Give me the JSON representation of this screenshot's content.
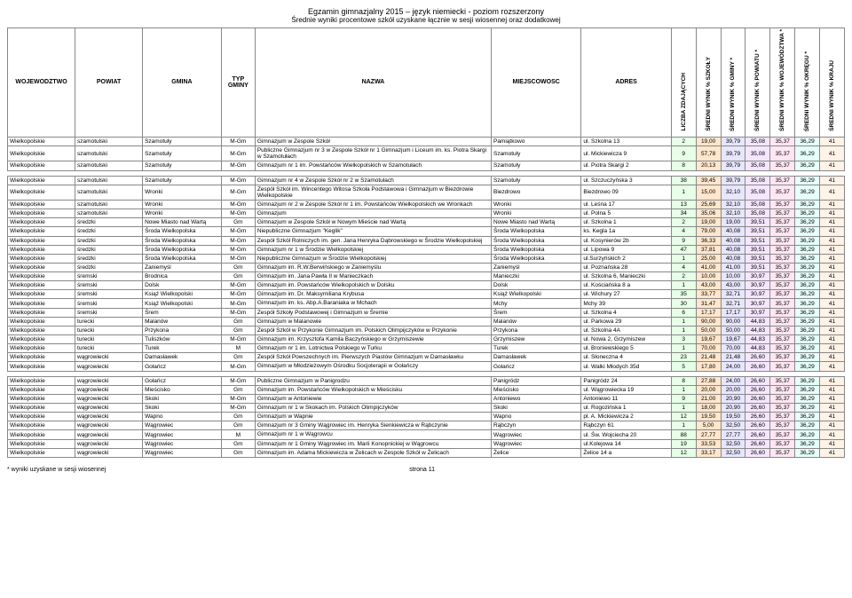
{
  "title": {
    "main": "Egzamin gimnazjalny 2015 – język niemiecki - poziom rozszerzony",
    "sub": "Średnie wyniki procentowe szkół  uzyskane łącznie w sesji wiosennej oraz dodatkowej"
  },
  "headers": {
    "wojewodztwo": "WOJEWODZTWO",
    "powiat": "POWIAT",
    "gmina": "GMINA",
    "typ_gminy": "TYP GMINY",
    "nazwa": "NAZWA",
    "miejscowosc": "MIEJSCOWOSC",
    "adres": "ADRES",
    "liczba": "LICZBA ZDAJĄCYCH",
    "szkoly": "ŚREDNI WYNIK % SZKOŁY",
    "gminy": "ŚREDNI WYNIK % GMINY *",
    "powiatu": "ŚREDNI WYNIK % POWIATU *",
    "wojew": "ŚREDNI WYNIK % WOJEWÓDZTWA *",
    "okregu": "ŚREDNI WYNIK % OKRĘGU *",
    "kraju": "ŚREDNI WYNIK % KRAJU"
  },
  "colors": {
    "liczba": "#e6ffe6",
    "szkoly": "#ffe6cc",
    "gminy": "#e6e6ff",
    "powiatu": "#f5e6ff",
    "wojew": "#ffe6f2",
    "okregu": "#e6fff9",
    "kraju": "#fff2e6"
  },
  "rows": [
    {
      "woj": "Wielkopolskie",
      "pow": "szamotulski",
      "gmi": "Szamotuły",
      "typ": "M-Gm",
      "nazwa": "Gimnazjum w Zespole Szkół",
      "miej": "Pamiątkowo",
      "adr": "ul. Szkolna 13",
      "v": [
        2,
        "19,00",
        "39,79",
        "35,08",
        "35,37",
        "36,29",
        "41"
      ]
    },
    {
      "woj": "Wielkopolskie",
      "pow": "szamotulski",
      "gmi": "Szamotuły",
      "typ": "M-Gm",
      "nazwa": "Publiczne Gimnazjum nr 3 w Zespole Szkół nr 1 Gimnazjum i Liceum im. ks. Piotra Skargi w Szamotułach",
      "miej": "Szamotuły",
      "adr": "ul. Mickiewicza 9",
      "v": [
        9,
        "57,78",
        "39,79",
        "35,08",
        "35,37",
        "36,29",
        "41"
      ]
    },
    {
      "woj": "Wielkopolskie",
      "pow": "szamotulski",
      "gmi": "Szamotuły",
      "typ": "M-Gm",
      "nazwa": "Gimnazjum nr 1 im. Powstańców Wielkopolskich w Szamotułach",
      "miej": "Szamotuły",
      "adr": "ul. Piotra Skargi 2",
      "v": [
        8,
        "20,13",
        "39,79",
        "35,08",
        "35,37",
        "36,29",
        "41"
      ]
    },
    {
      "_spacer": true
    },
    {
      "woj": "Wielkopolskie",
      "pow": "szamotulski",
      "gmi": "Szamotuły",
      "typ": "M-Gm",
      "nazwa": "Gimnazjum nr 4 w Zespole Szkół nr 2 w Szamotułach",
      "miej": "Szamotuły",
      "adr": "ul. Szczuczyńska 3",
      "v": [
        38,
        "39,45",
        "39,79",
        "35,08",
        "35,37",
        "36,29",
        "41"
      ]
    },
    {
      "woj": "Wielkopolskie",
      "pow": "szamotulski",
      "gmi": "Wronki",
      "typ": "M-Gm",
      "nazwa": "Zespół Szkół im. Wincentego Witosa Szkoła Podstawowa i Gimnazjum w Biezdrowie Wielkopolskie",
      "miej": "Biezdrowo",
      "adr": "Biezdrowo 09",
      "v": [
        1,
        "15,00",
        "32,10",
        "35,08",
        "35,37",
        "36,29",
        "41"
      ]
    },
    {
      "woj": "Wielkopolskie",
      "pow": "szamotulski",
      "gmi": "Wronki",
      "typ": "M-Gm",
      "nazwa": "Gimnazjum nr 2 w Zespole Szkół nr 1 im. Powstańców Wielkopolskich we Wronkach",
      "miej": "Wronki",
      "adr": "ul. Leśna 17",
      "v": [
        13,
        "25,69",
        "32,10",
        "35,08",
        "35,37",
        "36,29",
        "41"
      ]
    },
    {
      "woj": "Wielkopolskie",
      "pow": "szamotulski",
      "gmi": "Wronki",
      "typ": "M-Gm",
      "nazwa": "Gimnazjum",
      "miej": "Wronki",
      "adr": "ul. Polna 5",
      "v": [
        34,
        "35,06",
        "32,10",
        "35,08",
        "35,37",
        "36,29",
        "41"
      ]
    },
    {
      "woj": "Wielkopolskie",
      "pow": "średzki",
      "gmi": "Nowe Miasto nad Wartą",
      "typ": "Gm",
      "nazwa": "Gimnazjum w Zespole Szkół w Nowym Mieście nad Wartą",
      "miej": "Nowe Miasto nad Wartą",
      "adr": "ul. Szkolna 1",
      "v": [
        2,
        "19,00",
        "19,00",
        "39,51",
        "35,37",
        "36,29",
        "41"
      ]
    },
    {
      "woj": "Wielkopolskie",
      "pow": "średzki",
      "gmi": "Środa Wielkopolska",
      "typ": "M-Gm",
      "nazwa": "Niepubliczne Gimnazjum \"Keglik\"",
      "miej": "Środa Wielkopolska",
      "adr": "ks. Kegla 1a",
      "v": [
        4,
        "79,00",
        "40,08",
        "39,51",
        "35,37",
        "36,29",
        "41"
      ]
    },
    {
      "woj": "Wielkopolskie",
      "pow": "średzki",
      "gmi": "Środa Wielkopolska",
      "typ": "M-Gm",
      "nazwa": "Zespół Szkół Rolniczych im. gen. Jana Henryka Dąbrowskiego w Środzie Wielkopolskiej",
      "miej": "Środa Wielkopolska",
      "adr": "ul. Kosynierów 2b",
      "v": [
        9,
        "36,33",
        "40,08",
        "39,51",
        "35,37",
        "36,29",
        "41"
      ]
    },
    {
      "woj": "Wielkopolskie",
      "pow": "średzki",
      "gmi": "Środa Wielkopolska",
      "typ": "M-Gm",
      "nazwa": "Gimnazjum nr 1 w Środzie Wielkopolskiej",
      "miej": "Środa Wielkopolska",
      "adr": "ul. Lipowa 9",
      "v": [
        47,
        "37,81",
        "40,08",
        "39,51",
        "35,37",
        "36,29",
        "41"
      ]
    },
    {
      "woj": "Wielkopolskie",
      "pow": "średzki",
      "gmi": "Środa Wielkopolska",
      "typ": "M-Gm",
      "nazwa": "Niepubliczne Gimnazjum w Środzie Wielkopolskiej",
      "miej": "Środa Wielkopolska",
      "adr": "ul.Surzyńskich 2",
      "v": [
        1,
        "25,00",
        "40,08",
        "39,51",
        "35,37",
        "36,29",
        "41"
      ]
    },
    {
      "woj": "Wielkopolskie",
      "pow": "średzki",
      "gmi": "Zaniemyśl",
      "typ": "Gm",
      "nazwa": "Gimnazjum im. R.W.Berwińskiego w Zaniemyślu",
      "miej": "Zaniemyśl",
      "adr": "ul. Poznańska 28",
      "v": [
        4,
        "41,00",
        "41,00",
        "39,51",
        "35,37",
        "36,29",
        "41"
      ]
    },
    {
      "woj": "Wielkopolskie",
      "pow": "śremski",
      "gmi": "Brodnica",
      "typ": "Gm",
      "nazwa": "Gimnazjum im. Jana Pawła II w Manieczkach",
      "miej": "Manieczki",
      "adr": "ul. Szkolna 6, Manieczki",
      "v": [
        2,
        "10,00",
        "10,00",
        "30,97",
        "35,37",
        "36,29",
        "41"
      ]
    },
    {
      "woj": "Wielkopolskie",
      "pow": "śremski",
      "gmi": "Dolsk",
      "typ": "M-Gm",
      "nazwa": "Gimnazjum im. Powstańców Wielkopolskich w Dolsku",
      "miej": "Dolsk",
      "adr": "ul. Kościańska 8 a",
      "v": [
        1,
        "43,00",
        "43,00",
        "30,97",
        "35,37",
        "36,29",
        "41"
      ]
    },
    {
      "woj": "Wielkopolskie",
      "pow": "śremski",
      "gmi": "Książ Wielkopolski",
      "typ": "M-Gm",
      "nazwa": "Gimnazjum im. Dr. Maksymiliana Krybusa",
      "miej": "Książ Wielkopolski",
      "adr": "ul. Wichury 27",
      "v": [
        35,
        "33,77",
        "32,71",
        "30,97",
        "35,37",
        "36,29",
        "41"
      ]
    },
    {
      "woj": "Wielkopolskie",
      "pow": "śremski",
      "gmi": "Książ Wielkopolski",
      "typ": "M-Gm",
      "nazwa": "Gimnazjum im. ks. Abp.A.Baraniaka w Mchach",
      "miej": "Mchy",
      "adr": "Mchy 39",
      "v": [
        30,
        "31,47",
        "32,71",
        "30,97",
        "35,37",
        "36,29",
        "41"
      ]
    },
    {
      "woj": "Wielkopolskie",
      "pow": "śremski",
      "gmi": "Śrem",
      "typ": "M-Gm",
      "nazwa": "Zespół Szkoły Podstawowej i Gimnazjum w Śremie",
      "miej": "Śrem",
      "adr": "ul. Szkolna 4",
      "v": [
        6,
        "17,17",
        "17,17",
        "30,97",
        "35,37",
        "36,29",
        "41"
      ]
    },
    {
      "woj": "Wielkopolskie",
      "pow": "turecki",
      "gmi": "Malanów",
      "typ": "Gm",
      "nazwa": "Gimnazjum w Malanowie",
      "miej": "Malanów",
      "adr": "ul. Parkowa 29",
      "v": [
        1,
        "90,00",
        "90,00",
        "44,83",
        "35,37",
        "36,29",
        "41"
      ]
    },
    {
      "woj": "Wielkopolskie",
      "pow": "turecki",
      "gmi": "Przykona",
      "typ": "Gm",
      "nazwa": "Zespół Szkół w Przykonie Gimnazjum im. Polskich Olimpijczyków w Przykonie",
      "miej": "Przykona",
      "adr": "ul. Szkolna 4A",
      "v": [
        1,
        "50,00",
        "50,00",
        "44,83",
        "35,37",
        "36,29",
        "41"
      ]
    },
    {
      "woj": "Wielkopolskie",
      "pow": "turecki",
      "gmi": "Tuliszków",
      "typ": "M-Gm",
      "nazwa": "Gimnazjum im. Krzysztofa Kamila Baczyńskiego w Grzymiszewie",
      "miej": "Grzymiszew",
      "adr": "ul. Nowa 2, Grzymiszew",
      "v": [
        3,
        "19,67",
        "19,67",
        "44,83",
        "35,37",
        "36,29",
        "41"
      ]
    },
    {
      "woj": "Wielkopolskie",
      "pow": "turecki",
      "gmi": "Turek",
      "typ": "M",
      "nazwa": "Gimnazjum nr 1 im. Lotnictwa Polskiego w Turku",
      "miej": "Turek",
      "adr": "ul. Broniewskiego 5",
      "v": [
        1,
        "70,00",
        "70,00",
        "44,83",
        "35,37",
        "36,29",
        "41"
      ]
    },
    {
      "woj": "Wielkopolskie",
      "pow": "wągrowiecki",
      "gmi": "Damasławek",
      "typ": "Gm",
      "nazwa": "Zespół Szkół Powszechnych im. Pierwszych Piastów Gimnazjum w Damasławku",
      "miej": "Damasławek",
      "adr": "ul. Słoneczna 4",
      "v": [
        23,
        "21,48",
        "21,48",
        "26,60",
        "35,37",
        "36,29",
        "41"
      ]
    },
    {
      "woj": "Wielkopolskie",
      "pow": "wągrowiecki",
      "gmi": "Gołańcz",
      "typ": "M-Gm",
      "nazwa": "Gimnazjum w Młodzieżowym Ośrodku Socjoterapii w Gołańczy",
      "miej": "Gołańcz",
      "adr": "ul. Walki Młodych 35d",
      "v": [
        5,
        "17,80",
        "24,00",
        "26,60",
        "35,37",
        "36,29",
        "41"
      ]
    },
    {
      "_spacer": true
    },
    {
      "woj": "Wielkopolskie",
      "pow": "wągrowiecki",
      "gmi": "Gołańcz",
      "typ": "M-Gm",
      "nazwa": "Publiczne Gimnazjum w Panigrodzu",
      "miej": "Panigródz",
      "adr": "Panigródz 24",
      "v": [
        8,
        "27,88",
        "24,00",
        "26,60",
        "35,37",
        "36,29",
        "41"
      ]
    },
    {
      "woj": "Wielkopolskie",
      "pow": "wągrowiecki",
      "gmi": "Mieścisko",
      "typ": "Gm",
      "nazwa": "Gimnazjum im. Powstańców Wielkopolskich w Mieścisku",
      "miej": "Mieścisko",
      "adr": "ul. Wągrowiecka 19",
      "v": [
        1,
        "20,00",
        "20,00",
        "26,60",
        "35,37",
        "36,29",
        "41"
      ]
    },
    {
      "woj": "Wielkopolskie",
      "pow": "wągrowiecki",
      "gmi": "Skoki",
      "typ": "M-Gm",
      "nazwa": "Gimnazjum w Antoniewie",
      "miej": "Antoniewo",
      "adr": "Antoniewo 11",
      "v": [
        9,
        "21,00",
        "20,90",
        "26,60",
        "35,37",
        "36,29",
        "41"
      ]
    },
    {
      "woj": "Wielkopolskie",
      "pow": "wągrowiecki",
      "gmi": "Skoki",
      "typ": "M-Gm",
      "nazwa": "Gimnazjum nr 1 w Skokach im. Polskich Olimpijczyków",
      "miej": "Skoki",
      "adr": "ul. Rogozińska 1",
      "v": [
        1,
        "18,00",
        "20,90",
        "26,60",
        "35,37",
        "36,29",
        "41"
      ]
    },
    {
      "woj": "Wielkopolskie",
      "pow": "wągrowiecki",
      "gmi": "Wapno",
      "typ": "Gm",
      "nazwa": "Gimnazjum w Wapnie",
      "miej": "Wapno",
      "adr": "pl. A. Mickiewicza 2",
      "v": [
        12,
        "19,50",
        "19,50",
        "26,60",
        "35,37",
        "36,29",
        "41"
      ]
    },
    {
      "woj": "Wielkopolskie",
      "pow": "wągrowiecki",
      "gmi": "Wągrowiec",
      "typ": "Gm",
      "nazwa": "Gimnazjum nr 3 Gminy Wągrowiec im. Henryka Sienkiewicza w Rąbczynie",
      "miej": "Rąbczyn",
      "adr": "Rąbczyn 61",
      "v": [
        1,
        "5,00",
        "32,50",
        "26,60",
        "35,37",
        "36,29",
        "41"
      ]
    },
    {
      "woj": "Wielkopolskie",
      "pow": "wągrowiecki",
      "gmi": "Wągrowiec",
      "typ": "M",
      "nazwa": "Gimnazjum nr 1 w Wągrowcu",
      "miej": "Wągrowiec",
      "adr": "ul. Św. Wojciecha 20",
      "v": [
        88,
        "27,77",
        "27,77",
        "26,60",
        "35,37",
        "36,29",
        "41"
      ]
    },
    {
      "woj": "Wielkopolskie",
      "pow": "wągrowiecki",
      "gmi": "Wągrowiec",
      "typ": "Gm",
      "nazwa": "Gimnazjum nr 1 Gminy Wągrowiec im. Marii Konopnickiej w Wągrowcu",
      "miej": "Wągrowiec",
      "adr": "ul.Kolejowa 14",
      "v": [
        19,
        "33,53",
        "32,50",
        "26,60",
        "35,37",
        "36,29",
        "41"
      ]
    },
    {
      "woj": "Wielkopolskie",
      "pow": "wągrowiecki",
      "gmi": "Wągrowiec",
      "typ": "Gm",
      "nazwa": "Gimnazjum im. Adama Mickiewicza w Żelicach w Zespole Szkół w Żelicach",
      "miej": "Żelice",
      "adr": "Żelice 14 a",
      "v": [
        12,
        "33,17",
        "32,50",
        "26,60",
        "35,37",
        "36,29",
        "41"
      ]
    }
  ],
  "footer": {
    "note": "* wyniki uzyskane w sesji wiosennej",
    "page": "strona 11"
  }
}
